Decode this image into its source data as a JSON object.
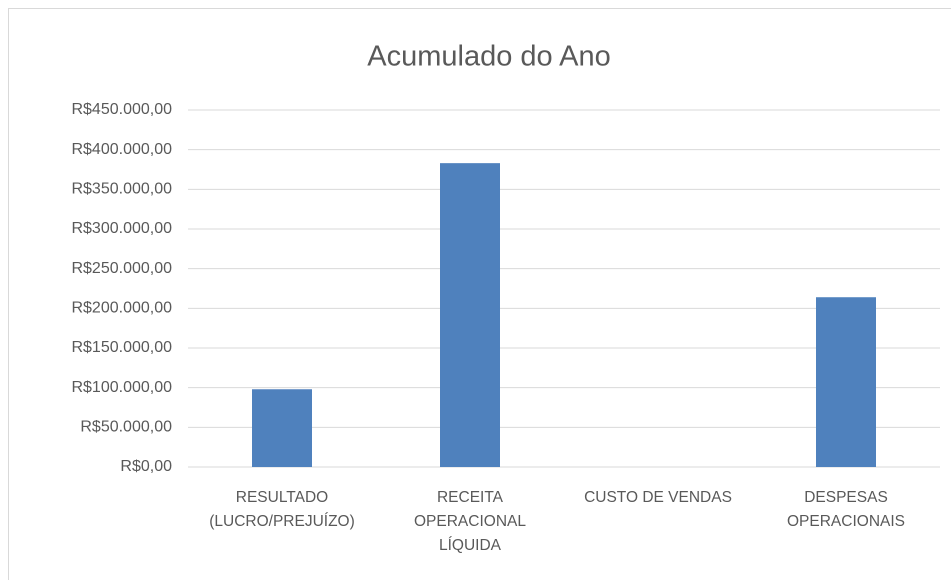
{
  "chart_data": {
    "type": "bar",
    "title": "Acumulado do Ano",
    "categories": [
      "RESULTADO (LUCRO/PREJUÍZO)",
      "RECEITA OPERACIONAL LÍQUIDA",
      "CUSTO DE VENDAS",
      "DESPESAS OPERACIONAIS"
    ],
    "values": [
      98000,
      383000,
      0,
      214000
    ],
    "color": "#4f81bd",
    "ylim": [
      0,
      450000
    ],
    "yticks": [
      {
        "value": 0,
        "label": "R$0,00"
      },
      {
        "value": 50000,
        "label": "R$50.000,00"
      },
      {
        "value": 100000,
        "label": "R$100.000,00"
      },
      {
        "value": 150000,
        "label": "R$150.000,00"
      },
      {
        "value": 200000,
        "label": "R$200.000,00"
      },
      {
        "value": 250000,
        "label": "R$250.000,00"
      },
      {
        "value": 300000,
        "label": "R$300.000,00"
      },
      {
        "value": 350000,
        "label": "R$350.000,00"
      },
      {
        "value": 400000,
        "label": "R$400.000,00"
      },
      {
        "value": 450000,
        "label": "R$450.000,00"
      }
    ],
    "grid": true
  }
}
